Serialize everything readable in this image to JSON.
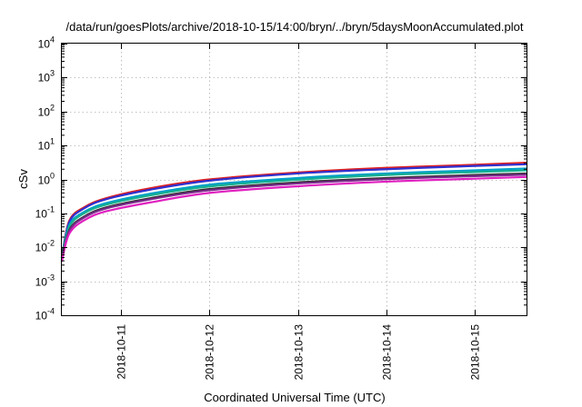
{
  "chart_data": {
    "type": "line",
    "title": "/data/run/goesPlots/archive/2018-10-15/14:00/bryn/../bryn/5daysMoonAccumulated.plot",
    "xlabel": "Coordinated Universal Time (UTC)",
    "ylabel": "cSv",
    "y_scale": "log",
    "ylim": [
      "1e-4",
      "1e4"
    ],
    "xlim": [
      "2018-10-10T08:00",
      "2018-10-15T14:00"
    ],
    "y_ticks": [
      {
        "base": "10",
        "exp": "-4",
        "value": 0.0001
      },
      {
        "base": "10",
        "exp": "-3",
        "value": 0.001
      },
      {
        "base": "10",
        "exp": "-2",
        "value": 0.01
      },
      {
        "base": "10",
        "exp": "-1",
        "value": 0.1
      },
      {
        "base": "10",
        "exp": "0",
        "value": 1
      },
      {
        "base": "10",
        "exp": "1",
        "value": 10
      },
      {
        "base": "10",
        "exp": "2",
        "value": 100
      },
      {
        "base": "10",
        "exp": "3",
        "value": 1000
      },
      {
        "base": "10",
        "exp": "4",
        "value": 10000
      }
    ],
    "x_ticks": [
      "2018-10-11",
      "2018-10-12",
      "2018-10-13",
      "2018-10-14",
      "2018-10-15"
    ],
    "grid": true,
    "x": [
      "2018-10-10T08:00",
      "2018-10-10T10:00",
      "2018-10-10T14:00",
      "2018-10-10T20:00",
      "2018-10-11T08:00",
      "2018-10-12T00:00",
      "2018-10-13T00:00",
      "2018-10-14T00:00",
      "2018-10-15T00:00",
      "2018-10-15T14:00"
    ],
    "series": [
      {
        "color": "#e02020",
        "values": [
          0.005,
          0.06,
          0.15,
          0.28,
          0.55,
          1.0,
          1.6,
          2.2,
          2.7,
          3.1
        ]
      },
      {
        "color": "#2f2fcf",
        "values": [
          0.005,
          0.055,
          0.14,
          0.26,
          0.5,
          0.92,
          1.5,
          2.0,
          2.5,
          2.8
        ]
      },
      {
        "color": "#00a0c8",
        "values": [
          0.005,
          0.045,
          0.11,
          0.2,
          0.38,
          0.7,
          1.1,
          1.5,
          1.85,
          2.1
        ]
      },
      {
        "color": "#18b090",
        "values": [
          0.005,
          0.04,
          0.1,
          0.18,
          0.34,
          0.62,
          0.98,
          1.35,
          1.65,
          1.85
        ]
      },
      {
        "color": "#303030",
        "values": [
          0.004,
          0.032,
          0.08,
          0.15,
          0.28,
          0.52,
          0.82,
          1.1,
          1.35,
          1.5
        ]
      },
      {
        "color": "#7a2a8a",
        "values": [
          0.004,
          0.03,
          0.075,
          0.14,
          0.26,
          0.48,
          0.76,
          1.02,
          1.25,
          1.38
        ]
      },
      {
        "color": "#e020c0",
        "values": [
          0.004,
          0.025,
          0.062,
          0.115,
          0.21,
          0.4,
          0.63,
          0.86,
          1.05,
          1.18
        ]
      }
    ]
  }
}
